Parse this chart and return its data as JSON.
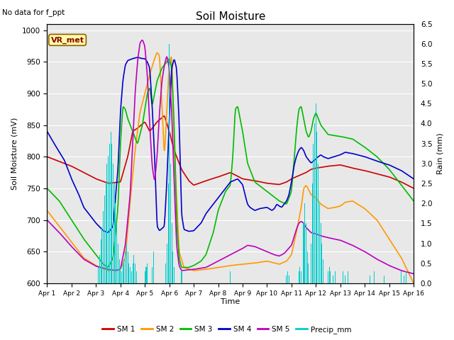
{
  "title": "Soil Moisture",
  "top_left_text": "No data for f_ppt",
  "box_label": "VR_met",
  "xlabel": "Time",
  "ylabel_left": "Soil Moisture (mV)",
  "ylabel_right": "Rain (mm)",
  "ylim_left": [
    600,
    1010
  ],
  "ylim_right": [
    0.0,
    6.5
  ],
  "colors": {
    "SM1": "#cc0000",
    "SM2": "#ff9900",
    "SM3": "#00bb00",
    "SM4": "#0000cc",
    "SM5": "#bb00bb",
    "Precip": "#00cccc",
    "background": "#e8e8e8",
    "grid": "#ffffff"
  },
  "legend_labels": [
    "SM 1",
    "SM 2",
    "SM 3",
    "SM 4",
    "SM 5",
    "Precip_mm"
  ],
  "x_tick_labels": [
    "Apr 1",
    "Apr 2",
    "Apr 3",
    "Apr 4",
    "Apr 5",
    "Apr 6",
    "Apr 7",
    "Apr 8",
    "Apr 9",
    "Apr 10",
    "Apr 11",
    "Apr 12",
    "Apr 13",
    "Apr 14",
    "Apr 15",
    "Apr 16"
  ],
  "figsize": [
    6.4,
    4.8
  ],
  "dpi": 100
}
